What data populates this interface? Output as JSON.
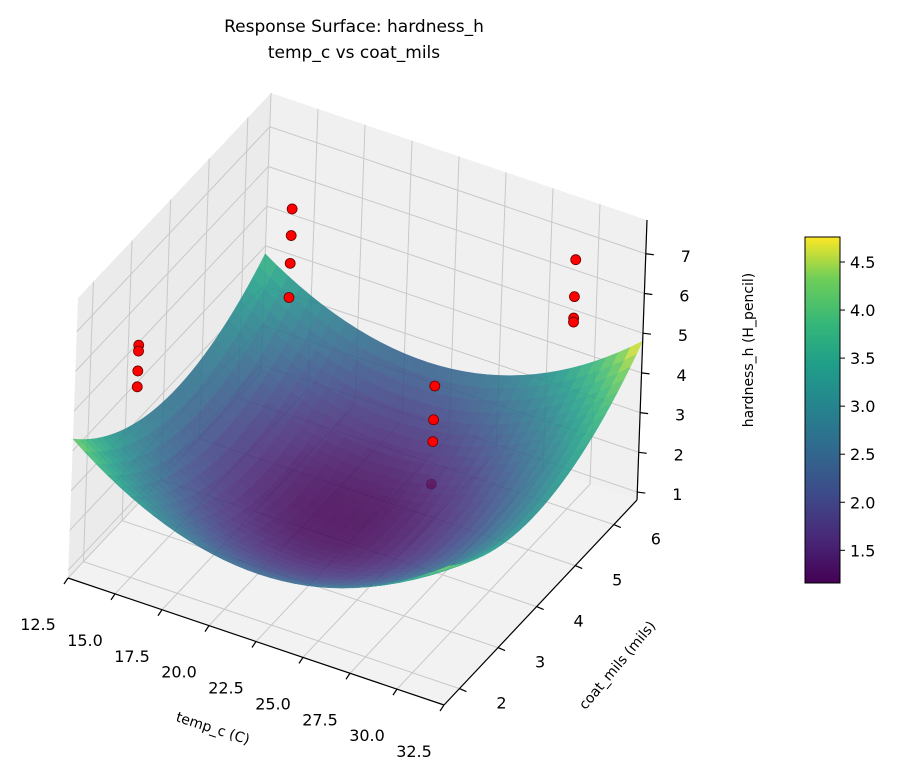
{
  "chart_data": {
    "type": "surface3d",
    "title": "Response Surface: hardness_h",
    "subtitle": "temp_c vs coat_mils",
    "xlabel": "temp_c (C)",
    "ylabel": "coat_mils (mils)",
    "zlabel": "hardness_h (H_pencil)",
    "xlim": [
      12.5,
      32.5
    ],
    "ylim": [
      1.6,
      6.6
    ],
    "zlim": [
      0.8,
      7.85
    ],
    "xticks": [
      "12.5",
      "15.0",
      "17.5",
      "20.0",
      "22.5",
      "25.0",
      "27.5",
      "30.0",
      "32.5"
    ],
    "yticks": [
      "2",
      "3",
      "4",
      "5",
      "6"
    ],
    "zticks": [
      "1",
      "2",
      "3",
      "4",
      "5",
      "6",
      "7"
    ],
    "grid": true,
    "colormap": "viridis",
    "colorbar": {
      "range": [
        1.16,
        4.76
      ],
      "ticks": [
        "1.5",
        "2.0",
        "2.5",
        "3.0",
        "3.5",
        "4.0",
        "4.5"
      ]
    },
    "surface_model": "z = 1.2 + 1.8*u^2 + 1.3*v^2 + 0.25*u + 0.25*u*v, u=(temp_c-22.5)/10, v=(coat_mils-4.1)/2.5",
    "points_color": "#ff0000",
    "points": [
      {
        "x": 15,
        "y": 2.0,
        "z": 6.65
      },
      {
        "x": 15,
        "y": 2.0,
        "z": 6.5
      },
      {
        "x": 15,
        "y": 2.0,
        "z": 6.0
      },
      {
        "x": 15,
        "y": 2.0,
        "z": 5.6
      },
      {
        "x": 15,
        "y": 6.0,
        "z": 5.95
      },
      {
        "x": 15,
        "y": 6.0,
        "z": 5.28
      },
      {
        "x": 15,
        "y": 6.0,
        "z": 4.58
      },
      {
        "x": 15,
        "y": 6.0,
        "z": 3.72
      },
      {
        "x": 30,
        "y": 6.0,
        "z": 7.07
      },
      {
        "x": 30,
        "y": 6.0,
        "z": 6.14
      },
      {
        "x": 30,
        "y": 6.0,
        "z": 5.6
      },
      {
        "x": 30,
        "y": 6.0,
        "z": 5.5
      },
      {
        "x": 24,
        "y": 5.4,
        "z": 3.55
      },
      {
        "x": 24,
        "y": 5.4,
        "z": 2.7
      },
      {
        "x": 24,
        "y": 5.4,
        "z": 2.15
      },
      {
        "x": 24,
        "y": 5.4,
        "z": 1.08
      }
    ]
  }
}
